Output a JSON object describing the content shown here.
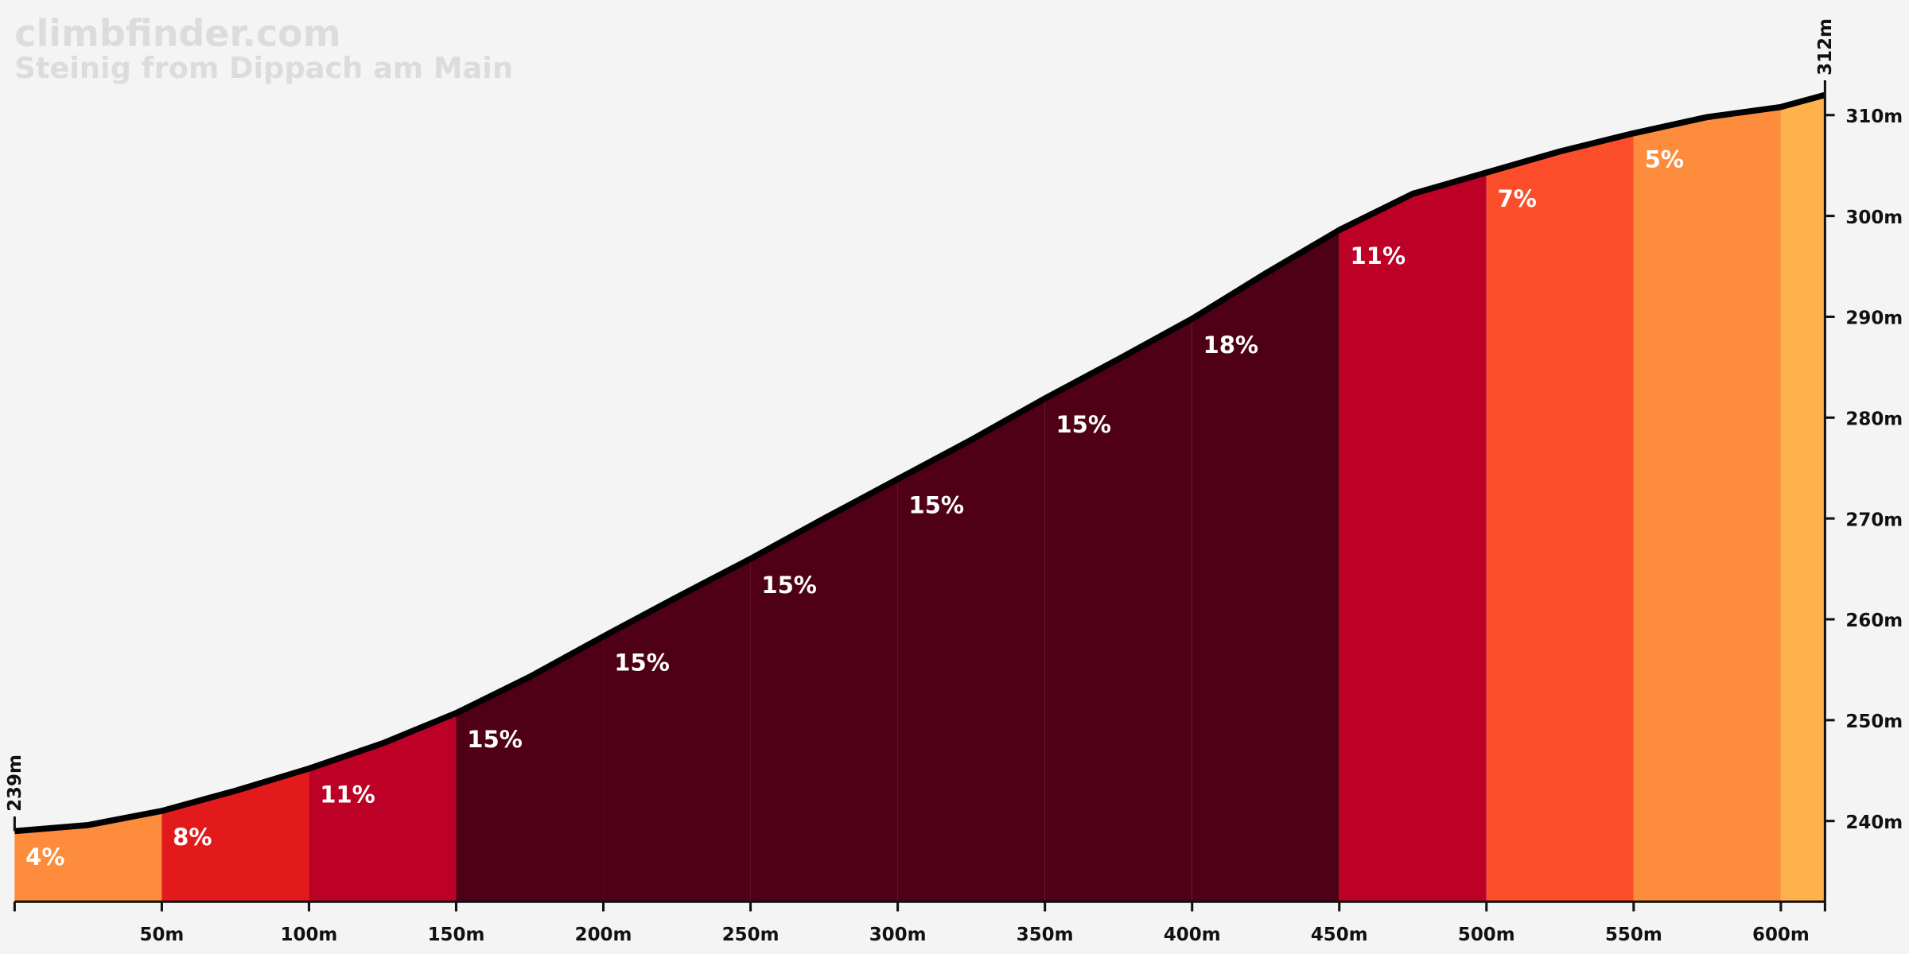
{
  "chart_data": {
    "type": "area",
    "title": "climbfinder.com",
    "subtitle": "Steinig from Dippach am Main",
    "x": [
      0,
      25,
      50,
      75,
      100,
      125,
      150,
      175,
      200,
      225,
      250,
      275,
      300,
      325,
      350,
      375,
      400,
      425,
      450,
      475,
      500,
      525,
      550,
      575,
      600,
      615
    ],
    "values": [
      239,
      239.6,
      241.0,
      243.0,
      245.2,
      247.7,
      250.7,
      254.3,
      258.3,
      262.2,
      266.0,
      270.0,
      273.9,
      277.8,
      281.9,
      285.8,
      289.8,
      294.3,
      298.6,
      302.2,
      304.3,
      306.4,
      308.2,
      309.8,
      310.8,
      312
    ],
    "line_color": "#000000",
    "segments": {
      "bins": [
        0,
        50,
        100,
        150,
        200,
        250,
        300,
        350,
        400,
        450,
        500,
        550,
        600,
        615
      ],
      "values": [
        4,
        8,
        11,
        15,
        15,
        15,
        15,
        15,
        18,
        11,
        7,
        5,
        null
      ],
      "value_labels": [
        "4%",
        "8%",
        "11%",
        "15%",
        "15%",
        "15%",
        "15%",
        "15%",
        "18%",
        "11%",
        "7%",
        "5%",
        null
      ],
      "colors": [
        "#fd8c3c",
        "#e31a1c",
        "#bd0026",
        "#4f0017",
        "#4f0017",
        "#4f0017",
        "#4f0017",
        "#4f0017",
        "#4f0017",
        "#bd0026",
        "#fc4e2a",
        "#fd8c3c",
        "#feb24c"
      ]
    },
    "start_label": {
      "value": 239,
      "label": "239m"
    },
    "end_label": {
      "value": 312,
      "label": "312m"
    },
    "xlim": [
      0,
      615
    ],
    "ylim": [
      232,
      312
    ],
    "xticks": [
      {
        "value": 50,
        "label": "50m"
      },
      {
        "value": 100,
        "label": "100m"
      },
      {
        "value": 150,
        "label": "150m"
      },
      {
        "value": 200,
        "label": "200m"
      },
      {
        "value": 250,
        "label": "250m"
      },
      {
        "value": 300,
        "label": "300m"
      },
      {
        "value": 350,
        "label": "350m"
      },
      {
        "value": 400,
        "label": "400m"
      },
      {
        "value": 450,
        "label": "450m"
      },
      {
        "value": 500,
        "label": "500m"
      },
      {
        "value": 550,
        "label": "550m"
      },
      {
        "value": 600,
        "label": "600m"
      }
    ],
    "yticks": [
      {
        "value": 240,
        "label": "240m"
      },
      {
        "value": 250,
        "label": "250m"
      },
      {
        "value": 260,
        "label": "260m"
      },
      {
        "value": 270,
        "label": "270m"
      },
      {
        "value": 280,
        "label": "280m"
      },
      {
        "value": 290,
        "label": "290m"
      },
      {
        "value": 300,
        "label": "300m"
      },
      {
        "value": 310,
        "label": "310m"
      }
    ]
  }
}
